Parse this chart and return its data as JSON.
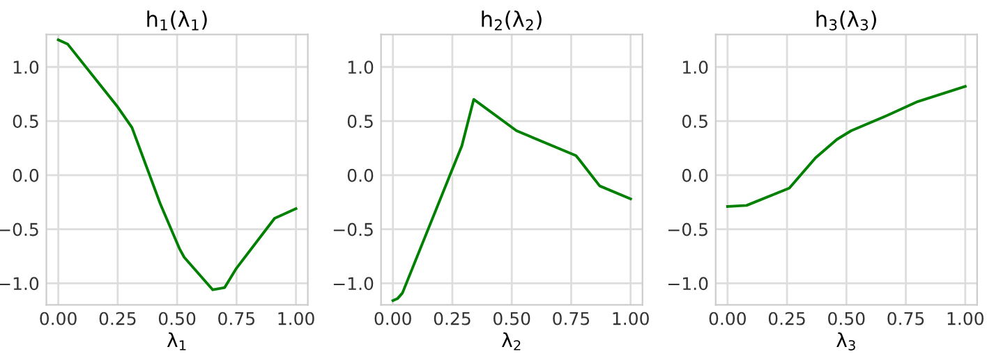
{
  "chart_data": [
    {
      "type": "line",
      "title": "h$_{1}$(λ$_{1}$)",
      "xlabel": "λ$_{1}$",
      "x": [
        0,
        0.04,
        0.25,
        0.31,
        0.43,
        0.51,
        0.53,
        0.65,
        0.7,
        0.75,
        0.91,
        1.0
      ],
      "series": [
        {
          "color": "#008000",
          "values": [
            1.25,
            1.21,
            0.63,
            0.44,
            -0.27,
            -0.68,
            -0.76,
            -1.06,
            -1.04,
            -0.86,
            -0.4,
            -0.31
          ]
        }
      ],
      "xlim": [
        -0.05,
        1.05
      ],
      "ylim": [
        -1.2,
        1.3
      ],
      "xticks": [
        {
          "value": 0,
          "label": "0.00"
        },
        {
          "value": 0.25,
          "label": "0.25"
        },
        {
          "value": 0.5,
          "label": "0.50"
        },
        {
          "value": 0.75,
          "label": "0.75"
        },
        {
          "value": 1,
          "label": "1.00"
        }
      ],
      "yticks": [
        {
          "value": -1,
          "label": "−1.0"
        },
        {
          "value": -0.5,
          "label": "−0.5"
        },
        {
          "value": 0,
          "label": "0.0"
        },
        {
          "value": 0.5,
          "label": "0.5"
        },
        {
          "value": 1,
          "label": "1.0"
        }
      ],
      "grid": true
    },
    {
      "type": "line",
      "title": "h$_{2}$(λ$_{2}$)",
      "xlabel": "λ$_{2}$",
      "x": [
        0,
        0.02,
        0.04,
        0.24,
        0.29,
        0.34,
        0.52,
        0.77,
        0.785,
        0.87,
        1.0
      ],
      "series": [
        {
          "color": "#008000",
          "values": [
            -1.16,
            -1.14,
            -1.09,
            0.0,
            0.27,
            0.7,
            0.41,
            0.18,
            0.14,
            -0.1,
            -0.22
          ]
        }
      ],
      "xlim": [
        -0.05,
        1.05
      ],
      "ylim": [
        -1.2,
        1.3
      ],
      "xticks": [
        {
          "value": 0,
          "label": "0.00"
        },
        {
          "value": 0.25,
          "label": "0.25"
        },
        {
          "value": 0.5,
          "label": "0.50"
        },
        {
          "value": 0.75,
          "label": "0.75"
        },
        {
          "value": 1,
          "label": "1.00"
        }
      ],
      "yticks": [
        {
          "value": -1,
          "label": "−1.0"
        },
        {
          "value": -0.5,
          "label": "−0.5"
        },
        {
          "value": 0,
          "label": "0.0"
        },
        {
          "value": 0.5,
          "label": "0.5"
        },
        {
          "value": 1,
          "label": "1.0"
        }
      ],
      "grid": true
    },
    {
      "type": "line",
      "title": "h$_{3}$(λ$_{3}$)",
      "xlabel": "λ$_{3}$",
      "x": [
        0,
        0.08,
        0.26,
        0.37,
        0.46,
        0.52,
        0.67,
        0.8,
        1.0
      ],
      "series": [
        {
          "color": "#008000",
          "values": [
            -0.29,
            -0.28,
            -0.12,
            0.16,
            0.33,
            0.41,
            0.55,
            0.68,
            0.82
          ]
        }
      ],
      "xlim": [
        -0.05,
        1.05
      ],
      "ylim": [
        -1.2,
        1.3
      ],
      "xticks": [
        {
          "value": 0,
          "label": "0.00"
        },
        {
          "value": 0.25,
          "label": "0.25"
        },
        {
          "value": 0.5,
          "label": "0.50"
        },
        {
          "value": 0.75,
          "label": "0.75"
        },
        {
          "value": 1,
          "label": "1.00"
        }
      ],
      "yticks": [
        {
          "value": -1,
          "label": "−1.0"
        },
        {
          "value": -0.5,
          "label": "−0.5"
        },
        {
          "value": 0,
          "label": "0.0"
        },
        {
          "value": 0.5,
          "label": "0.5"
        },
        {
          "value": 1,
          "label": "1.0"
        }
      ],
      "grid": true
    }
  ]
}
